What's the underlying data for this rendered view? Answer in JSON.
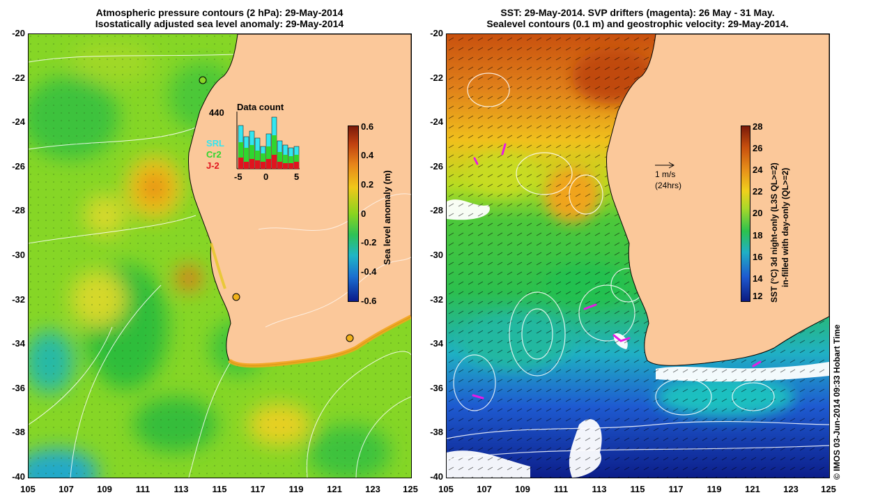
{
  "left_panel": {
    "title_line1": "Atmospheric pressure contours (2 hPa): 29-May-2014",
    "title_line2": "Isostatically adjusted sea level anomaly: 29-May-2014",
    "colorbar": {
      "label": "Sea level anomaly (m)",
      "ticks": [
        "0.6",
        "0.4",
        "0.2",
        "0",
        "-0.2",
        "-0.4",
        "-0.6"
      ]
    },
    "inset": {
      "title": "Data count",
      "max_count": "440",
      "legend": [
        {
          "name": "SRL",
          "color": "#33e6f0"
        },
        {
          "name": "Cr2",
          "color": "#2fd62f"
        },
        {
          "name": "J-2",
          "color": "#e0141e"
        }
      ],
      "x_ticks": [
        "-5",
        "0",
        "5"
      ]
    }
  },
  "right_panel": {
    "title_line1": "SST: 29-May-2014. SVP drifters (magenta): 26 May - 31 May.",
    "title_line2": "Sealevel contours (0.1 m) and geostrophic velocity: 29-May-2014.",
    "colorbar": {
      "label_line1": "SST (°C)  3d night-only (L3S QL>=2)",
      "label_line2": "in-filled with day-only (QL>=2)",
      "ticks": [
        "28",
        "26",
        "24",
        "22",
        "20",
        "18",
        "16",
        "14",
        "12"
      ]
    },
    "scale_arrow": {
      "speed": "1 m/s",
      "period": "(24hrs)"
    }
  },
  "axes": {
    "y_ticks": [
      "-20",
      "-22",
      "-24",
      "-26",
      "-28",
      "-30",
      "-32",
      "-34",
      "-36",
      "-38",
      "-40"
    ],
    "x_ticks": [
      "105",
      "107",
      "109",
      "111",
      "113",
      "115",
      "117",
      "119",
      "121",
      "123",
      "125"
    ]
  },
  "credit": "© IMOS 03-Jun-2014 09:33 Hobart Time",
  "colors": {
    "land": "#fbc89a",
    "anomaly_zero": "#7ed321",
    "sst_warm": "#d86a12",
    "sst_cold": "#1d3fc2",
    "drifter": "#e619e6"
  }
}
